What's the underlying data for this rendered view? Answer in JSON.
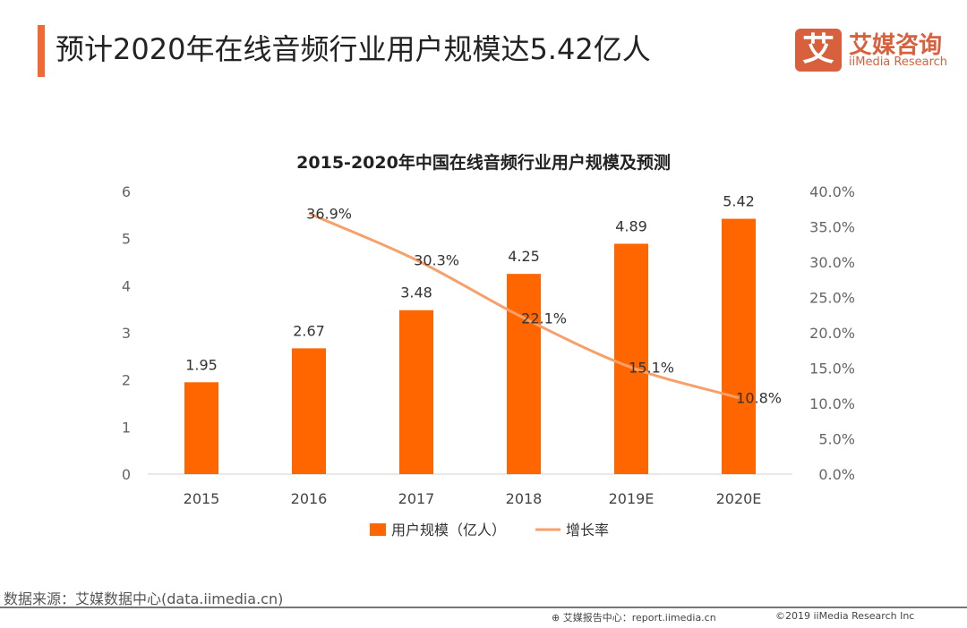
{
  "header": {
    "title": "预计2020年在线音频行业用户规模达5.42亿人"
  },
  "logo": {
    "mark": "艾",
    "name_cn": "艾媒咨询",
    "name_en": "iiMedia Research"
  },
  "colors": {
    "accent": "#f06a35",
    "bar": "#ff6600",
    "line": "#f7a06a",
    "logo": "#d9603c"
  },
  "chart_data": {
    "type": "bar+line",
    "title": "2015-2020年中国在线音频行业用户规模及预测",
    "categories": [
      "2015",
      "2016",
      "2017",
      "2018",
      "2019E",
      "2020E"
    ],
    "series": [
      {
        "name": "用户规模（亿人）",
        "type": "bar",
        "axis": "left",
        "values": [
          1.95,
          2.67,
          3.48,
          4.25,
          4.89,
          5.42
        ],
        "labels": [
          "1.95",
          "2.67",
          "3.48",
          "4.25",
          "4.89",
          "5.42"
        ]
      },
      {
        "name": "增长率",
        "type": "line",
        "axis": "right",
        "values": [
          null,
          36.9,
          30.3,
          22.1,
          15.1,
          10.8
        ],
        "labels": [
          "",
          "36.9%",
          "30.3%",
          "22.1%",
          "15.1%",
          "10.8%"
        ]
      }
    ],
    "y_left": {
      "lim": [
        0,
        6
      ],
      "ticks": [
        "0",
        "1",
        "2",
        "3",
        "4",
        "5",
        "6"
      ]
    },
    "y_right": {
      "lim": [
        0,
        40
      ],
      "ticks": [
        "0.0%",
        "5.0%",
        "10.0%",
        "15.0%",
        "20.0%",
        "25.0%",
        "30.0%",
        "35.0%",
        "40.0%"
      ]
    },
    "grid": false,
    "legend": "bottom"
  },
  "footer": {
    "source": "数据来源：艾媒数据中心(data.iimedia.cn)",
    "report": "艾媒报告中心：report.iimedia.cn",
    "copyright": "©2019  iiMedia Research  Inc"
  }
}
